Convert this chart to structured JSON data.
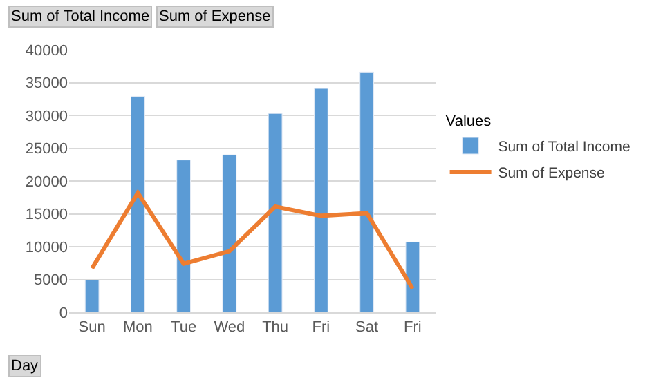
{
  "chart_data": {
    "type": "bar",
    "categories": [
      "Sun",
      "Mon",
      "Tue",
      "Wed",
      "Thu",
      "Fri",
      "Sat",
      "Fri"
    ],
    "series": [
      {
        "name": "Sum of Total Income",
        "color": "#5b9bd5",
        "values": [
          4900,
          32900,
          23200,
          24000,
          30300,
          34100,
          36600,
          10700
        ]
      },
      {
        "name": "Sum of Expense",
        "type": "line",
        "color": "#ed7d31",
        "marker": "none",
        "line_style": "solid",
        "values": [
          6700,
          18200,
          7400,
          9300,
          16100,
          14700,
          15100,
          3600
        ]
      }
    ],
    "ylim": [
      0,
      40000
    ],
    "yticks": [
      0,
      5000,
      10000,
      15000,
      20000,
      25000,
      30000,
      35000,
      40000
    ],
    "grid": "y",
    "legend": "right",
    "legend_title": "Values",
    "annotations": [
      "Sum of Total Income",
      "Sum of Expense",
      "Day"
    ]
  }
}
